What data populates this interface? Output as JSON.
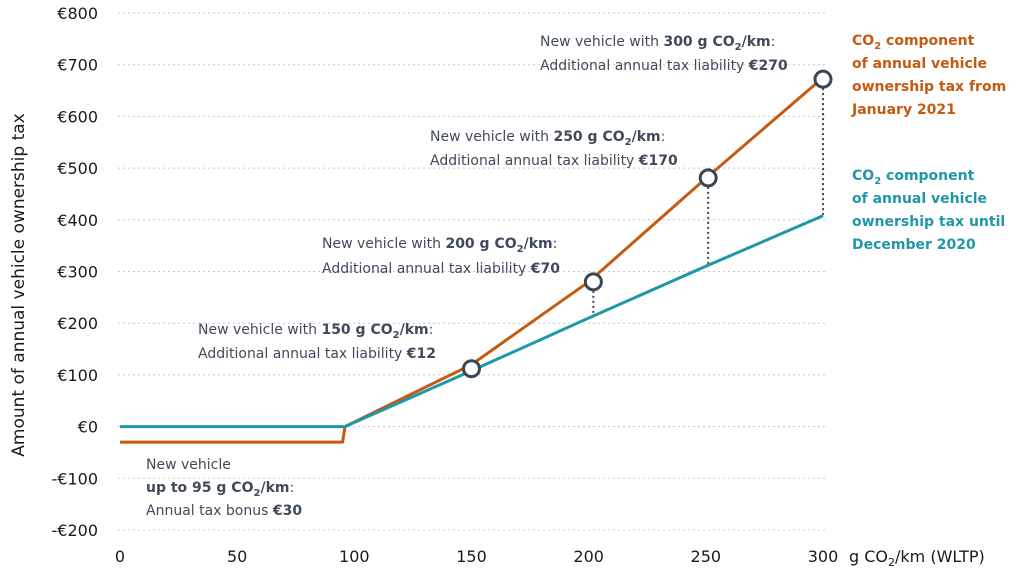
{
  "chart_data": {
    "type": "line",
    "ylabel": "Amount of annual vehicle ownership tax",
    "xlabel_prefix": "g CO",
    "xlabel_sub": "2",
    "xlabel_suffix": "/km (WLTP)",
    "xlim": [
      0,
      300
    ],
    "ylim": [
      -200,
      800
    ],
    "x_ticks": [
      0,
      50,
      100,
      150,
      200,
      250,
      300
    ],
    "y_ticks": [
      800,
      700,
      600,
      500,
      400,
      300,
      200,
      100,
      0,
      -100,
      -200
    ],
    "y_tick_labels": [
      "€800",
      "€700",
      "€600",
      "€500",
      "€400",
      "€300",
      "€200",
      "€100",
      "€0",
      "-€100",
      "-€200"
    ],
    "series": [
      {
        "name": "2021",
        "color": "#c55a11",
        "x": [
          0,
          95,
          96,
          150,
          200,
          250,
          300
        ],
        "y": [
          -30,
          -30,
          0,
          120,
          280,
          480,
          675
        ]
      },
      {
        "name": "2020",
        "color": "#1f97a8",
        "x": [
          0,
          96,
          150,
          200,
          250,
          300
        ],
        "y": [
          0,
          0,
          108,
          210,
          310,
          408
        ]
      }
    ],
    "markers": [
      {
        "x": 150,
        "y": 112,
        "y_low": 108
      },
      {
        "x": 202,
        "y": 280,
        "y_low": 212
      },
      {
        "x": 251,
        "y": 481,
        "y_low": 313
      },
      {
        "x": 300,
        "y": 672,
        "y_low": 408
      }
    ],
    "legend": {
      "new": {
        "l1_a": "CO",
        "l1_sub": "2",
        "l1_b": " component",
        "l2": "of annual vehicle",
        "l3": "ownership tax from",
        "l4": "January 2021"
      },
      "old": {
        "l1_a": "CO",
        "l1_sub": "2",
        "l1_b": " component",
        "l2": "of annual vehicle",
        "l3": "ownership tax until",
        "l4": "December 2020"
      }
    },
    "annotations": {
      "a300": {
        "l1_a": "New vehicle with ",
        "l1_b": "300 g CO",
        "l1_sub": "2",
        "l1_c": "/km",
        "l1_d": ":",
        "l2_a": "Additional annual tax liability ",
        "l2_b": "€270"
      },
      "a250": {
        "l1_a": "New vehicle with ",
        "l1_b": "250 g CO",
        "l1_sub": "2",
        "l1_c": "/km",
        "l1_d": ":",
        "l2_a": "Additional annual tax liability ",
        "l2_b": "€170"
      },
      "a200": {
        "l1_a": "New vehicle with ",
        "l1_b": "200 g CO",
        "l1_sub": "2",
        "l1_c": "/km",
        "l1_d": ":",
        "l2_a": "Additional annual tax liability ",
        "l2_b": "€70"
      },
      "a150": {
        "l1_a": "New vehicle with ",
        "l1_b": "150 g CO",
        "l1_sub": "2",
        "l1_c": "/km",
        "l1_d": ":",
        "l2_a": "Additional annual tax liability ",
        "l2_b": "€12"
      },
      "bonus": {
        "l1": "New vehicle",
        "l2_a": "up to 95 g CO",
        "l2_sub": "2",
        "l2_b": "/km",
        "l2_c": ":",
        "l3_a": "Annual tax bonus ",
        "l3_b": "€30"
      }
    }
  }
}
